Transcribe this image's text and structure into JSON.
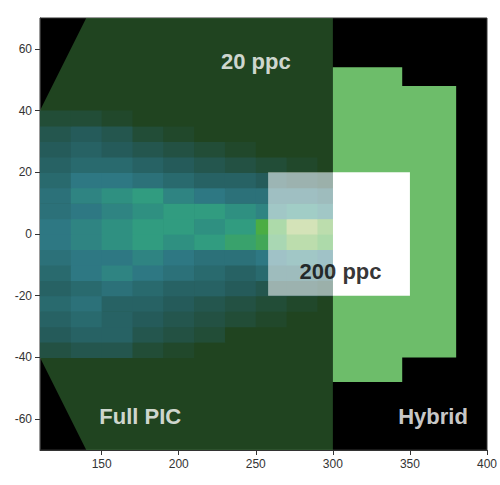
{
  "chart_data": {
    "type": "image",
    "xlim": [
      110,
      400
    ],
    "ylim": [
      -70,
      70
    ],
    "xticks": [
      150,
      200,
      250,
      300,
      350,
      400
    ],
    "yticks": [
      -60,
      -40,
      -20,
      0,
      20,
      40,
      60
    ],
    "grid": false,
    "heatmap": {
      "x_edges": [
        110,
        130,
        150,
        170,
        190,
        210,
        230,
        250,
        270,
        290,
        310
      ],
      "y_edges": [
        -40,
        -35,
        -30,
        -25,
        -20,
        -15,
        -10,
        -5,
        0,
        5,
        10,
        15,
        20,
        25,
        30,
        35,
        40
      ],
      "zlim": [
        0,
        1
      ],
      "cells": [
        [
          0.15,
          0.2,
          0.2,
          0.1,
          0.05,
          0,
          0,
          0,
          0,
          0
        ],
        [
          0.25,
          0.3,
          0.3,
          0.2,
          0.15,
          0.1,
          0,
          0,
          0,
          0
        ],
        [
          0.3,
          0.35,
          0.3,
          0.25,
          0.2,
          0.15,
          0.1,
          0.05,
          0,
          0
        ],
        [
          0.35,
          0.4,
          0.3,
          0.3,
          0.25,
          0.2,
          0.15,
          0.1,
          0.05,
          0
        ],
        [
          0.3,
          0.35,
          0.4,
          0.35,
          0.3,
          0.3,
          0.25,
          0.2,
          0.2,
          0.15
        ],
        [
          0.35,
          0.45,
          0.5,
          0.45,
          0.4,
          0.35,
          0.3,
          0.35,
          0.35,
          0.3
        ],
        [
          0.4,
          0.45,
          0.45,
          0.5,
          0.45,
          0.4,
          0.4,
          0.45,
          0.5,
          0.45
        ],
        [
          0.45,
          0.5,
          0.55,
          0.6,
          0.55,
          0.6,
          0.65,
          0.7,
          0.8,
          0.75
        ],
        [
          0.45,
          0.5,
          0.55,
          0.6,
          0.6,
          0.55,
          0.6,
          0.75,
          0.9,
          0.8
        ],
        [
          0.4,
          0.45,
          0.5,
          0.55,
          0.6,
          0.6,
          0.55,
          0.5,
          0.55,
          0.5
        ],
        [
          0.4,
          0.5,
          0.55,
          0.6,
          0.5,
          0.45,
          0.4,
          0.4,
          0.4,
          0.35
        ],
        [
          0.35,
          0.45,
          0.45,
          0.4,
          0.35,
          0.3,
          0.3,
          0.25,
          0.2,
          0.15
        ],
        [
          0.3,
          0.35,
          0.35,
          0.3,
          0.25,
          0.2,
          0.15,
          0.1,
          0.05,
          0
        ],
        [
          0.25,
          0.3,
          0.25,
          0.2,
          0.15,
          0.1,
          0.05,
          0,
          0,
          0
        ],
        [
          0.2,
          0.25,
          0.2,
          0.1,
          0.05,
          0,
          0,
          0,
          0,
          0
        ],
        [
          0.1,
          0.1,
          0.05,
          0,
          0,
          0,
          0,
          0,
          0,
          0
        ]
      ]
    },
    "regions": [
      {
        "color": "rgba(70,150,70,0.45)",
        "points": [
          [
            110,
            40
          ],
          [
            140,
            70
          ],
          [
            300,
            70
          ],
          [
            300,
            -70
          ],
          [
            140,
            -70
          ],
          [
            110,
            -40
          ]
        ]
      },
      {
        "color": "#6dbd6a",
        "points": [
          [
            300,
            54
          ],
          [
            345,
            54
          ],
          [
            345,
            48
          ],
          [
            380,
            48
          ],
          [
            380,
            -40
          ],
          [
            345,
            -40
          ],
          [
            345,
            -48
          ],
          [
            300,
            -48
          ]
        ]
      },
      {
        "color": "rgba(255,255,255,0.55)",
        "points": [
          [
            258,
            20
          ],
          [
            300,
            20
          ],
          [
            300,
            -20
          ],
          [
            258,
            -20
          ]
        ]
      },
      {
        "color": "#ffffff",
        "points": [
          [
            300,
            20
          ],
          [
            350,
            20
          ],
          [
            350,
            -20
          ],
          [
            300,
            -20
          ]
        ]
      }
    ],
    "annotations": [
      {
        "text": "20 ppc",
        "x": 250,
        "y": 56,
        "color": "#ffffff"
      },
      {
        "text": "200 ppc",
        "x": 305,
        "y": -12,
        "color": "#000000"
      },
      {
        "text": "Full PIC",
        "x": 175,
        "y": -59,
        "color": "#ffffff"
      },
      {
        "text": "Hybrid",
        "x": 365,
        "y": -59,
        "color": "#ffffff"
      }
    ]
  }
}
